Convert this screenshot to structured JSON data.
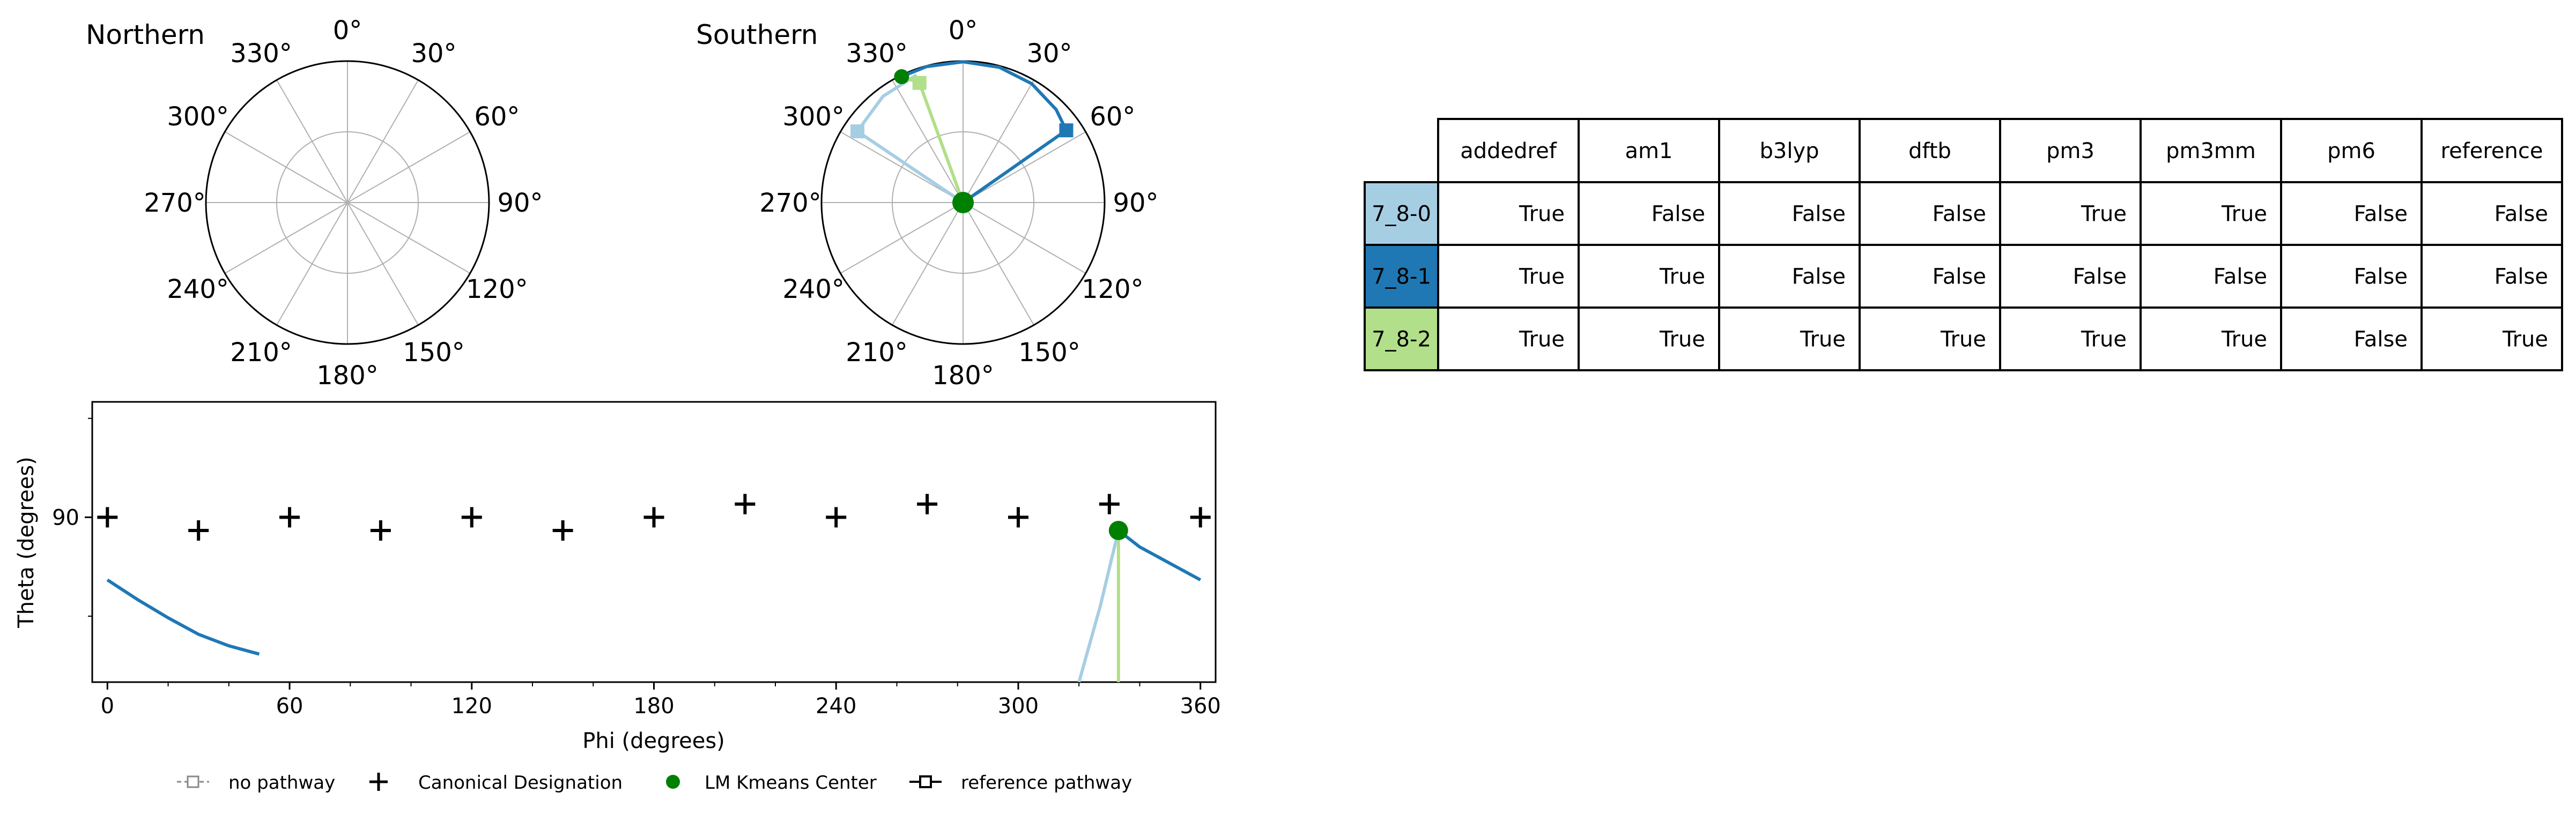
{
  "chart_data": [
    {
      "type": "polar",
      "title": "Northern",
      "angle_labels": [
        "0°",
        "30°",
        "60°",
        "90°",
        "120°",
        "150°",
        "180°",
        "210°",
        "240°",
        "270°",
        "300°",
        "330°"
      ],
      "series": []
    },
    {
      "type": "polar",
      "title": "Southern",
      "angle_labels": [
        "0°",
        "30°",
        "60°",
        "90°",
        "120°",
        "150°",
        "180°",
        "210°",
        "240°",
        "270°",
        "300°",
        "330°"
      ],
      "series": [
        {
          "name": "7_8-0",
          "color": "#a6cee3",
          "phi": [
            340,
            323,
            307,
            304,
            0
          ],
          "r": [
            0.96,
            0.94,
            0.9,
            0.9,
            0.0
          ]
        },
        {
          "name": "7_8-1",
          "color": "#1f78b4",
          "phi": [
            334,
            345,
            0,
            15,
            30,
            45,
            55,
            55,
            0
          ],
          "r": [
            0.99,
            0.995,
            0.995,
            0.99,
            0.97,
            0.93,
            0.89,
            0.89,
            0.0
          ]
        },
        {
          "name": "7_8-2",
          "color": "#b2df8a",
          "phi": [
            334,
            340,
            0
          ],
          "r": [
            0.99,
            0.9,
            0.0
          ]
        }
      ],
      "kmeans_centers": [
        {
          "phi": 334,
          "r": 0.99
        },
        {
          "phi": 0,
          "r": 0.0
        }
      ]
    },
    {
      "type": "line",
      "xlabel": "Phi (degrees)",
      "ylabel": "Theta (degrees)",
      "xlim": [
        -5,
        365
      ],
      "ylim": [
        140,
        55
      ],
      "xticks": [
        0,
        60,
        120,
        180,
        240,
        300,
        360
      ],
      "yticks": [
        90
      ],
      "canonical": {
        "phi": [
          0,
          30,
          60,
          90,
          120,
          150,
          180,
          210,
          240,
          270,
          300,
          330,
          360
        ],
        "theta": [
          90,
          94,
          90,
          94,
          90,
          94,
          90,
          86,
          90,
          86,
          90,
          86,
          90
        ]
      },
      "series": [
        {
          "name": "7_8-1",
          "color": "#1f78b4",
          "segments": [
            {
              "phi": [
                0,
                10,
                20,
                30,
                40,
                50
              ],
              "theta": [
                109,
                115,
                120.5,
                125.5,
                129,
                131.5
              ]
            },
            {
              "phi": [
                333,
                340,
                350,
                360
              ],
              "theta": [
                94,
                99,
                104,
                109
              ]
            }
          ]
        },
        {
          "name": "7_8-0",
          "color": "#a6cee3",
          "segments": [
            {
              "phi": [
                320,
                327,
                333
              ],
              "theta": [
                140,
                117,
                94
              ]
            }
          ]
        },
        {
          "name": "7_8-2",
          "color": "#b2df8a",
          "segments": [
            {
              "phi": [
                333,
                333
              ],
              "theta": [
                94,
                140
              ]
            }
          ]
        }
      ],
      "kmeans_centers": [
        {
          "phi": 333,
          "theta": 94
        }
      ]
    }
  ],
  "legend": [
    {
      "label": "no pathway",
      "marker": "dashed-square"
    },
    {
      "label": "Canonical Designation",
      "marker": "plus"
    },
    {
      "label": "LM Kmeans Center",
      "marker": "green-dot"
    },
    {
      "label": "reference pathway",
      "marker": "line-square"
    }
  ],
  "table": {
    "columns": [
      "addedref",
      "am1",
      "b3lyp",
      "dftb",
      "pm3",
      "pm3mm",
      "pm6",
      "reference"
    ],
    "rows": [
      {
        "label": "7_8-0",
        "color": "#a6cee3",
        "values": [
          "True",
          "False",
          "False",
          "False",
          "True",
          "True",
          "False",
          "False"
        ]
      },
      {
        "label": "7_8-1",
        "color": "#1f78b4",
        "values": [
          "True",
          "True",
          "False",
          "False",
          "False",
          "False",
          "False",
          "False"
        ]
      },
      {
        "label": "7_8-2",
        "color": "#b2df8a",
        "values": [
          "True",
          "True",
          "True",
          "True",
          "True",
          "True",
          "False",
          "True"
        ]
      }
    ]
  },
  "colors": {
    "kmeans": "#008000",
    "grid": "#b0b0b0",
    "canonical": "#000000"
  }
}
